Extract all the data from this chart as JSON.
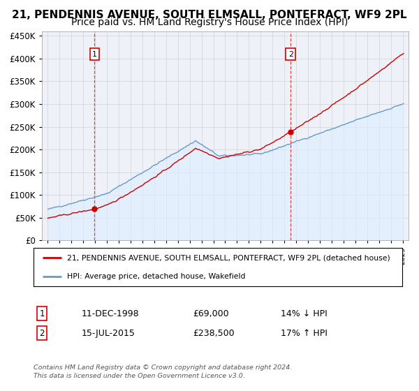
{
  "title": "21, PENDENNIS AVENUE, SOUTH ELMSALL, PONTEFRACT, WF9 2PL",
  "subtitle": "Price paid vs. HM Land Registry's House Price Index (HPI)",
  "legend_line1": "21, PENDENNIS AVENUE, SOUTH ELMSALL, PONTEFRACT, WF9 2PL (detached house)",
  "legend_line2": "HPI: Average price, detached house, Wakefield",
  "note": "Contains HM Land Registry data © Crown copyright and database right 2024.\nThis data is licensed under the Open Government Licence v3.0.",
  "annotation1_label": "1",
  "annotation1_date": "11-DEC-1998",
  "annotation1_price": "£69,000",
  "annotation1_hpi": "14% ↓ HPI",
  "annotation2_label": "2",
  "annotation2_date": "15-JUL-2015",
  "annotation2_price": "£238,500",
  "annotation2_hpi": "17% ↑ HPI",
  "sale1_x": 1998.95,
  "sale1_y": 69000,
  "sale2_x": 2015.54,
  "sale2_y": 238500,
  "ylim": [
    0,
    460000
  ],
  "xlim_left": 1994.5,
  "xlim_right": 2025.5,
  "red_color": "#cc0000",
  "blue_color": "#6699cc",
  "fill_color": "#ddeeff",
  "background_color": "#eef2f8",
  "grid_color": "#cccccc",
  "title_fontsize": 11,
  "subtitle_fontsize": 10
}
